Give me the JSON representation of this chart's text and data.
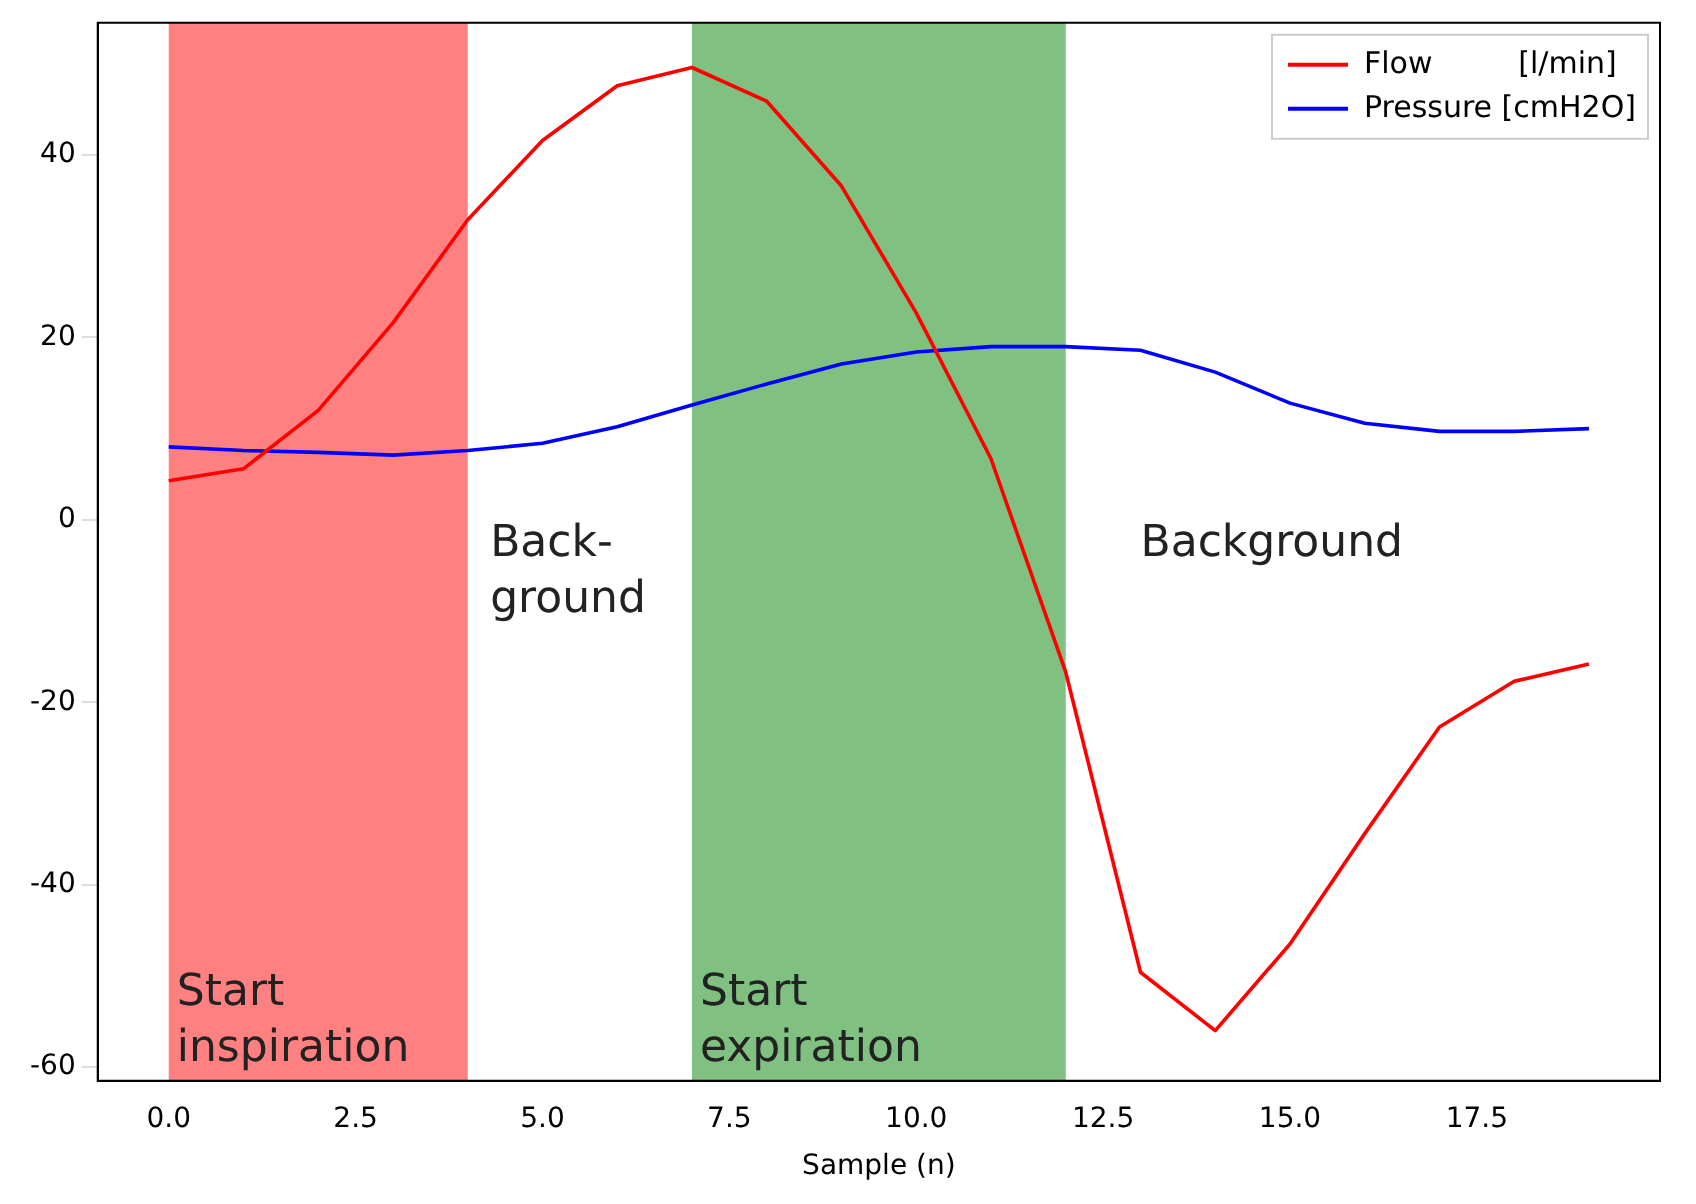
{
  "chart_data": {
    "type": "line",
    "xlabel": "Sample (n)",
    "x": [
      0,
      1,
      2,
      3,
      4,
      5,
      6,
      7,
      8,
      9,
      10,
      11,
      12,
      13,
      14,
      15,
      16,
      17,
      18,
      19
    ],
    "series": [
      {
        "name": "Flow         [l/min]",
        "color": "#ff0000",
        "values": [
          4.3,
          5.6,
          12,
          21.6,
          32.9,
          41.6,
          47.6,
          49.6,
          45.9,
          36.6,
          22.7,
          6.7,
          -16.7,
          -49.6,
          -56,
          -46.5,
          -34.4,
          -22.7,
          -17.7,
          -15.8
        ]
      },
      {
        "name": "Pressure [cmH2O]",
        "color": "#0000ff",
        "values": [
          8,
          7.6,
          7.4,
          7.1,
          7.6,
          8.4,
          10.2,
          12.6,
          14.9,
          17.1,
          18.4,
          19,
          19,
          18.6,
          16.2,
          12.8,
          10.6,
          9.7,
          9.7,
          10
        ]
      }
    ],
    "bands": [
      {
        "axis": "x",
        "from": 0,
        "to": 4,
        "label": "Start inspiration",
        "color": "#ff8080"
      },
      {
        "axis": "x",
        "from": 7,
        "to": 12,
        "label": "Start expiration",
        "color": "#80c080"
      }
    ],
    "annotations": [
      "Back-\nground",
      "Background"
    ],
    "xlim": [
      -0.95,
      19.95
    ],
    "xticks": [
      {
        "value": 0,
        "label": "0.0"
      },
      {
        "value": 2.5,
        "label": "2.5"
      },
      {
        "value": 5,
        "label": "5.0"
      },
      {
        "value": 7.5,
        "label": "7.5"
      },
      {
        "value": 10,
        "label": "10.0"
      },
      {
        "value": 12.5,
        "label": "12.5"
      },
      {
        "value": 15,
        "label": "15.0"
      },
      {
        "value": 17.5,
        "label": "17.5"
      }
    ],
    "ylim": [
      -61.5,
      54.5
    ],
    "yticks": [
      -60,
      -40,
      -20,
      0,
      20,
      40
    ],
    "grid": false,
    "legend": "top right",
    "marker": "none",
    "line_style": "solid"
  }
}
